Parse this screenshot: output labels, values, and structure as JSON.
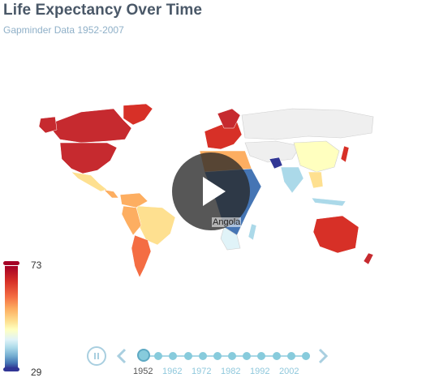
{
  "header": {
    "title": "Life Expectancy Over Time",
    "subtitle": "Gapminder Data 1952-2007"
  },
  "map": {
    "hover_country": "Angola"
  },
  "legend": {
    "max": "73",
    "min": "29",
    "colors": [
      "#a50026",
      "#d73027",
      "#fdae61",
      "#ffffbf",
      "#abd9e9",
      "#4575b4",
      "#313695"
    ]
  },
  "timeline": {
    "current_year": "1952",
    "labels": [
      "1952",
      "1962",
      "1972",
      "1982",
      "1992",
      "2002"
    ],
    "dot_count": 12
  },
  "icons": {
    "play": "play-icon",
    "pause": "pause-icon",
    "prev": "chevron-left-icon",
    "next": "chevron-right-icon"
  }
}
